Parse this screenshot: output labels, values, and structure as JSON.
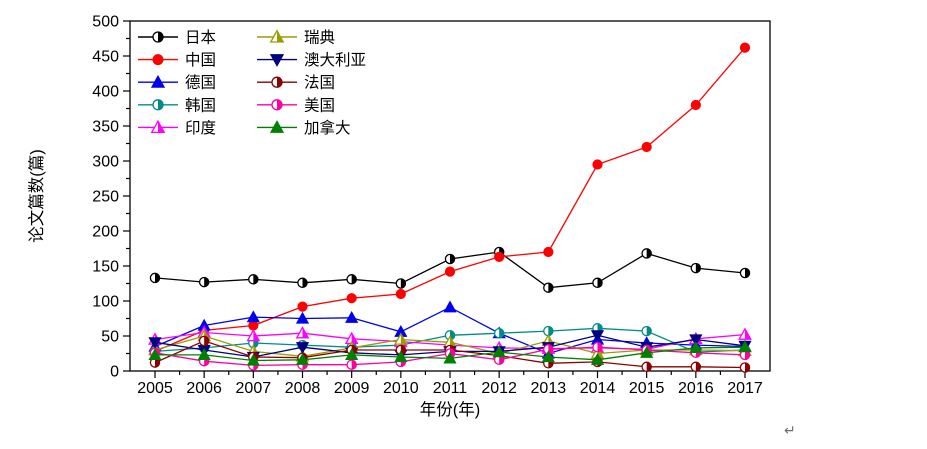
{
  "page": {
    "background": "#ffffff",
    "return_mark": "↵"
  },
  "chart_data": {
    "type": "line",
    "title": "",
    "xlabel": "年份(年)",
    "ylabel": "论文篇数(篇)",
    "x": [
      2005,
      2006,
      2007,
      2008,
      2009,
      2010,
      2011,
      2012,
      2013,
      2014,
      2015,
      2016,
      2017
    ],
    "ylim": [
      0,
      500
    ],
    "ytick_step": 50,
    "ytick_minor_step": 25,
    "grid": false,
    "legend_position": "top-left-inside",
    "legend_columns": 2,
    "series": [
      {
        "key": "japan",
        "name": "日本",
        "color": "#000000",
        "marker": "circle-half",
        "values": [
          133,
          127,
          131,
          126,
          131,
          125,
          160,
          170,
          119,
          126,
          168,
          147,
          140
        ]
      },
      {
        "key": "china",
        "name": "中国",
        "color": "#ff0000",
        "marker": "circle",
        "values": [
          28,
          58,
          65,
          92,
          104,
          110,
          142,
          163,
          170,
          295,
          320,
          380,
          462
        ]
      },
      {
        "key": "germany",
        "name": "德国",
        "color": "#0000ee",
        "marker": "triangle",
        "values": [
          35,
          65,
          77,
          75,
          76,
          56,
          91,
          54,
          25,
          45,
          40,
          37,
          35
        ]
      },
      {
        "key": "korea",
        "name": "韩国",
        "color": "#008b8b",
        "marker": "circle-half",
        "values": [
          28,
          33,
          40,
          37,
          34,
          37,
          51,
          54,
          57,
          61,
          57,
          27,
          30
        ]
      },
      {
        "key": "india",
        "name": "印度",
        "color": "#ff00ff",
        "marker": "triangle-half",
        "values": [
          45,
          55,
          50,
          54,
          46,
          42,
          37,
          33,
          32,
          33,
          31,
          46,
          52
        ]
      },
      {
        "key": "sweden",
        "name": "瑞典",
        "color": "#9c9c00",
        "marker": "triangle-half",
        "values": [
          30,
          50,
          28,
          21,
          33,
          45,
          41,
          25,
          43,
          25,
          30,
          30,
          29
        ]
      },
      {
        "key": "australia",
        "name": "澳大利亚",
        "color": "#000080",
        "marker": "triangle-down",
        "values": [
          41,
          30,
          20,
          34,
          26,
          23,
          28,
          28,
          34,
          51,
          34,
          45,
          36
        ]
      },
      {
        "key": "france",
        "name": "法国",
        "color": "#8b0000",
        "marker": "circle-half",
        "values": [
          12,
          43,
          20,
          19,
          30,
          30,
          30,
          22,
          11,
          13,
          6,
          6,
          5
        ]
      },
      {
        "key": "usa",
        "name": "美国",
        "color": "#ff00a0",
        "marker": "circle-half",
        "values": [
          26,
          14,
          8,
          9,
          9,
          13,
          25,
          16,
          31,
          34,
          30,
          26,
          23
        ]
      },
      {
        "key": "canada",
        "name": "加拿大",
        "color": "#008000",
        "marker": "triangle",
        "values": [
          23,
          23,
          15,
          16,
          23,
          20,
          18,
          27,
          20,
          16,
          26,
          33,
          34
        ]
      }
    ]
  }
}
